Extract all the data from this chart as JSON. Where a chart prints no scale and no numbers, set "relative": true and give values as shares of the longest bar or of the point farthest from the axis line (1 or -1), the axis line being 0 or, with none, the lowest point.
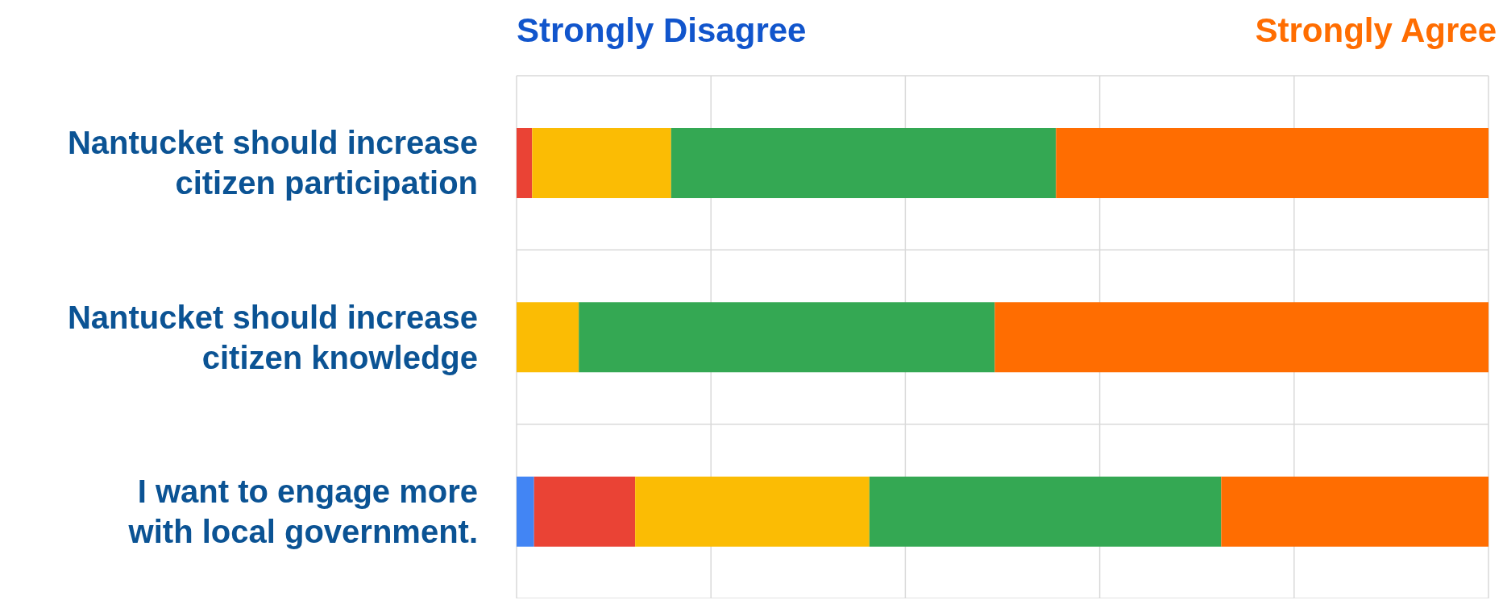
{
  "chart_data": {
    "type": "bar",
    "orientation": "horizontal",
    "stacked": true,
    "relative": true,
    "grid": true,
    "categories": [
      "Nantucket should increase citizen participation",
      "Nantucket should increase citizen knowledge",
      "I want to engage more with local government."
    ],
    "series": [
      {
        "color": "#4285f4",
        "values": [
          0,
          0,
          0.018
        ]
      },
      {
        "color": "#ea4335",
        "values": [
          0.016,
          0,
          0.104
        ]
      },
      {
        "color": "#fbbc04",
        "values": [
          0.143,
          0.064,
          0.241
        ]
      },
      {
        "color": "#34a853",
        "values": [
          0.396,
          0.428,
          0.362
        ]
      },
      {
        "color": "#ff6d01",
        "values": [
          0.445,
          0.508,
          0.275
        ]
      }
    ],
    "annotations": [
      "Strongly Disagree",
      "Strongly Agree"
    ]
  }
}
